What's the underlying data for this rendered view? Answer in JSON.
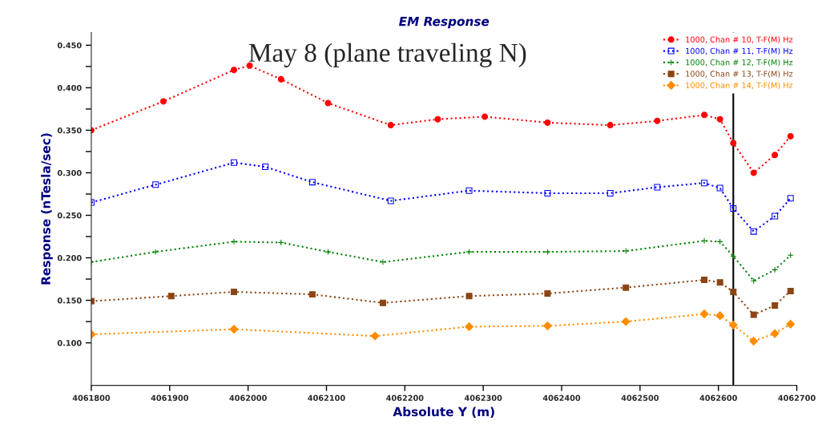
{
  "chart_data": {
    "type": "line",
    "title": "EM Response",
    "xlabel": "Absolute Y (m)",
    "ylabel": "Response (nTesla/sec)",
    "annotations": [
      "May 8 (plane traveling N)"
    ],
    "xlim": [
      4061800,
      4062700
    ],
    "xticks": [
      4061800,
      4061900,
      4062000,
      4062100,
      4062200,
      4062300,
      4062400,
      4062500,
      4062600,
      4062700
    ],
    "ylim": [
      0.05,
      0.465
    ],
    "yticks": [
      {
        "value": 0.1,
        "label": "0.100"
      },
      {
        "value": 0.125,
        "label": null
      },
      {
        "value": 0.15,
        "label": "0.150"
      },
      {
        "value": 0.175,
        "label": null
      },
      {
        "value": 0.2,
        "label": "0.200"
      },
      {
        "value": 0.225,
        "label": null
      },
      {
        "value": 0.25,
        "label": "0.250"
      },
      {
        "value": 0.275,
        "label": null
      },
      {
        "value": 0.3,
        "label": "0.300"
      },
      {
        "value": 0.325,
        "label": null
      },
      {
        "value": 0.35,
        "label": "0.350"
      },
      {
        "value": 0.375,
        "label": null
      },
      {
        "value": 0.4,
        "label": "0.400"
      },
      {
        "value": 0.425,
        "label": null
      },
      {
        "value": 0.45,
        "label": "0.450"
      }
    ],
    "grid": false,
    "legend": "top right",
    "line_style": "dotted",
    "ref_lines": [
      {
        "axis": "x",
        "value": 4062619,
        "color": "#000000",
        "line_style": "solid"
      }
    ],
    "series": [
      {
        "name": "1000, Chan # 10, T-F(M) Hz",
        "color": "#ff0000",
        "marker": "circle",
        "x": [
          4061800,
          4061892,
          4061982,
          4062002,
          4062042,
          4062102,
          4062182,
          4062242,
          4062302,
          4062382,
          4062462,
          4062522,
          4062582,
          4062602,
          4062619,
          4062645,
          4062672,
          4062692
        ],
        "values": [
          0.35,
          0.384,
          0.421,
          0.426,
          0.41,
          0.382,
          0.356,
          0.363,
          0.366,
          0.359,
          0.356,
          0.361,
          0.368,
          0.363,
          0.335,
          0.3,
          0.321,
          0.343
        ]
      },
      {
        "name": "1000, Chan # 11, T-F(M) Hz",
        "color": "#0000ff",
        "marker": "square",
        "x": [
          4061800,
          4061882,
          4061982,
          4062022,
          4062082,
          4062182,
          4062282,
          4062382,
          4062462,
          4062522,
          4062582,
          4062602,
          4062619,
          4062645,
          4062672,
          4062692
        ],
        "values": [
          0.265,
          0.286,
          0.312,
          0.307,
          0.289,
          0.267,
          0.279,
          0.276,
          0.276,
          0.283,
          0.288,
          0.282,
          0.258,
          0.231,
          0.249,
          0.27
        ]
      },
      {
        "name": "1000, Chan # 12, T-F(M) Hz",
        "color": "#008000",
        "marker": "cross",
        "x": [
          4061800,
          4061882,
          4061982,
          4062042,
          4062102,
          4062172,
          4062282,
          4062382,
          4062482,
          4062582,
          4062602,
          4062619,
          4062645,
          4062672,
          4062692
        ],
        "values": [
          0.195,
          0.207,
          0.219,
          0.218,
          0.207,
          0.195,
          0.207,
          0.207,
          0.208,
          0.22,
          0.219,
          0.202,
          0.173,
          0.186,
          0.203
        ]
      },
      {
        "name": "1000, Chan # 13, T-F(M) Hz",
        "color": "#8b4513",
        "marker": "square",
        "x": [
          4061800,
          4061902,
          4061982,
          4062082,
          4062172,
          4062282,
          4062382,
          4062482,
          4062582,
          4062602,
          4062619,
          4062645,
          4062672,
          4062692
        ],
        "values": [
          0.149,
          0.155,
          0.16,
          0.157,
          0.147,
          0.155,
          0.158,
          0.165,
          0.174,
          0.171,
          0.16,
          0.133,
          0.144,
          0.161
        ]
      },
      {
        "name": "1000, Chan # 14, T-F(M) Hz",
        "color": "#ff8c00",
        "marker": "diamond",
        "x": [
          4061800,
          4061982,
          4062162,
          4062282,
          4062382,
          4062482,
          4062582,
          4062602,
          4062619,
          4062645,
          4062672,
          4062692
        ],
        "values": [
          0.11,
          0.116,
          0.108,
          0.119,
          0.12,
          0.125,
          0.134,
          0.132,
          0.121,
          0.102,
          0.111,
          0.122
        ]
      }
    ]
  }
}
